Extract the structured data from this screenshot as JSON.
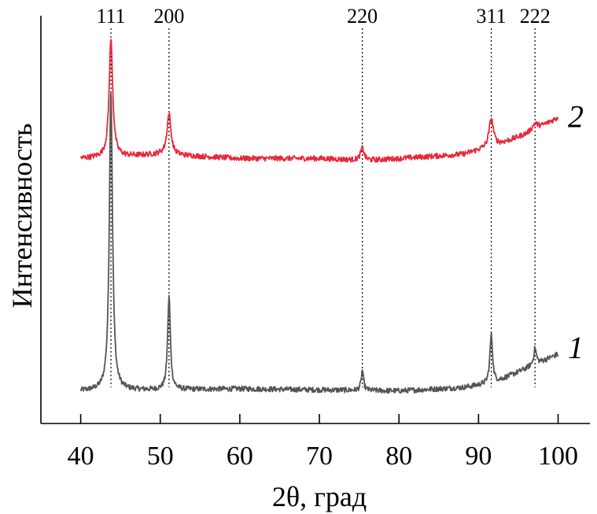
{
  "chart_data": {
    "type": "line",
    "xlabel": "2θ, град",
    "ylabel": "Интенсивность",
    "xlim": [
      35,
      104
    ],
    "ylim": [
      0,
      100
    ],
    "x_ticks": [
      "40",
      "50",
      "60",
      "70",
      "80",
      "90",
      "100"
    ],
    "y_ticks_shown": false,
    "grid": false,
    "peaks": [
      {
        "label": "111",
        "x": 43.8
      },
      {
        "label": "200",
        "x": 51.1
      },
      {
        "label": "220",
        "x": 75.4
      },
      {
        "label": "311",
        "x": 91.6
      },
      {
        "label": "222",
        "x": 97.1
      }
    ],
    "series": [
      {
        "name": "1",
        "color": "#555555",
        "baseline": [
          [
            40,
            8
          ],
          [
            60,
            8.5
          ],
          [
            80,
            8
          ],
          [
            88,
            8.8
          ],
          [
            92,
            10
          ],
          [
            96,
            13.5
          ],
          [
            100,
            17
          ]
        ],
        "peaks": [
          {
            "x": 43.8,
            "height": 74,
            "width": 0.35
          },
          {
            "x": 51.1,
            "height": 23,
            "width": 0.3
          },
          {
            "x": 75.4,
            "height": 5,
            "width": 0.25
          },
          {
            "x": 91.6,
            "height": 12,
            "width": 0.3
          },
          {
            "x": 97.1,
            "height": 4,
            "width": 0.3
          }
        ]
      },
      {
        "name": "2",
        "color": "#e8283a",
        "baseline": [
          [
            40,
            65
          ],
          [
            50,
            66
          ],
          [
            60,
            65
          ],
          [
            70,
            65
          ],
          [
            76,
            64.5
          ],
          [
            88,
            66
          ],
          [
            92,
            68
          ],
          [
            96,
            71
          ],
          [
            100,
            75
          ]
        ],
        "peaks": [
          {
            "x": 43.8,
            "height": 29,
            "width": 0.4
          },
          {
            "x": 51.1,
            "height": 10,
            "width": 0.45
          },
          {
            "x": 75.4,
            "height": 3,
            "width": 0.4
          },
          {
            "x": 91.6,
            "height": 7,
            "width": 0.5
          },
          {
            "x": 97.1,
            "height": 1.5,
            "width": 0.6
          }
        ]
      }
    ]
  }
}
